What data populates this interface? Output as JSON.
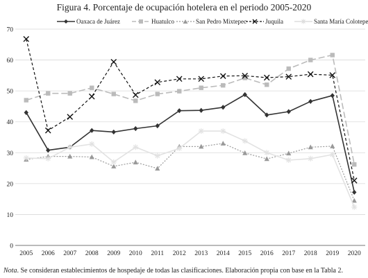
{
  "title": "Figura 4. Porcentaje de ocupación hotelera en el periodo 2005-2020",
  "note": {
    "label": "Nota",
    "text": ". Se consideran establecimientos de hospedaje de todas las clasificaciones. Elaboración propia con base en la Tabla 2."
  },
  "chart_data": {
    "type": "line",
    "title": "Figura 4. Porcentaje de ocupación hotelera en el periodo 2005-2020",
    "xlabel": "",
    "ylabel": "",
    "categories": [
      "2005",
      "2006",
      "2007",
      "2008",
      "2009",
      "2010",
      "2011",
      "2012",
      "2013",
      "2014",
      "2015",
      "2016",
      "2017",
      "2018",
      "2019",
      "2020"
    ],
    "ylim": [
      0,
      70
    ],
    "yticks": [
      0,
      10,
      20,
      30,
      40,
      50,
      60,
      70
    ],
    "grid": true,
    "legend": "top",
    "series": [
      {
        "name": "Oaxaca de Juárez",
        "color": "#333333",
        "dash": "",
        "marker": "diamond",
        "width": 1.6,
        "values": [
          43.0,
          30.8,
          31.8,
          37.2,
          36.7,
          37.8,
          38.7,
          43.6,
          43.7,
          44.7,
          48.8,
          42.2,
          43.3,
          46.6,
          48.5,
          17.2
        ]
      },
      {
        "name": "Huatulco",
        "color": "#bbbbbb",
        "dash": "9,4",
        "marker": "square",
        "width": 1.6,
        "values": [
          47.0,
          49.2,
          49.2,
          51.0,
          49.0,
          46.8,
          49.0,
          49.9,
          51.0,
          51.8,
          54.2,
          52.0,
          57.2,
          60.0,
          61.6,
          26.2
        ]
      },
      {
        "name": "San Pedro Mixtepec",
        "color": "#999999",
        "dash": "2,2",
        "marker": "triangle",
        "width": 1.2,
        "values": [
          27.8,
          28.8,
          28.8,
          28.6,
          25.6,
          26.9,
          24.9,
          32.0,
          32.0,
          33.0,
          29.9,
          28.0,
          29.8,
          31.8,
          32.1,
          14.5
        ]
      },
      {
        "name": "Juquila",
        "color": "#111111",
        "dash": "4,3",
        "marker": "x",
        "width": 1.2,
        "values": [
          66.8,
          37.2,
          41.6,
          48.2,
          59.4,
          48.7,
          52.8,
          53.9,
          53.9,
          54.8,
          54.9,
          54.3,
          54.6,
          55.4,
          55.1,
          21.0
        ]
      },
      {
        "name": "Santa María Colotepec",
        "color": "#e2e2e2",
        "dash": "",
        "marker": "star",
        "width": 1.6,
        "values": [
          28.3,
          28.1,
          31.8,
          32.8,
          27.0,
          31.8,
          29.0,
          31.4,
          37.0,
          37.0,
          33.8,
          30.0,
          27.6,
          28.1,
          29.4,
          12.4
        ]
      }
    ]
  }
}
